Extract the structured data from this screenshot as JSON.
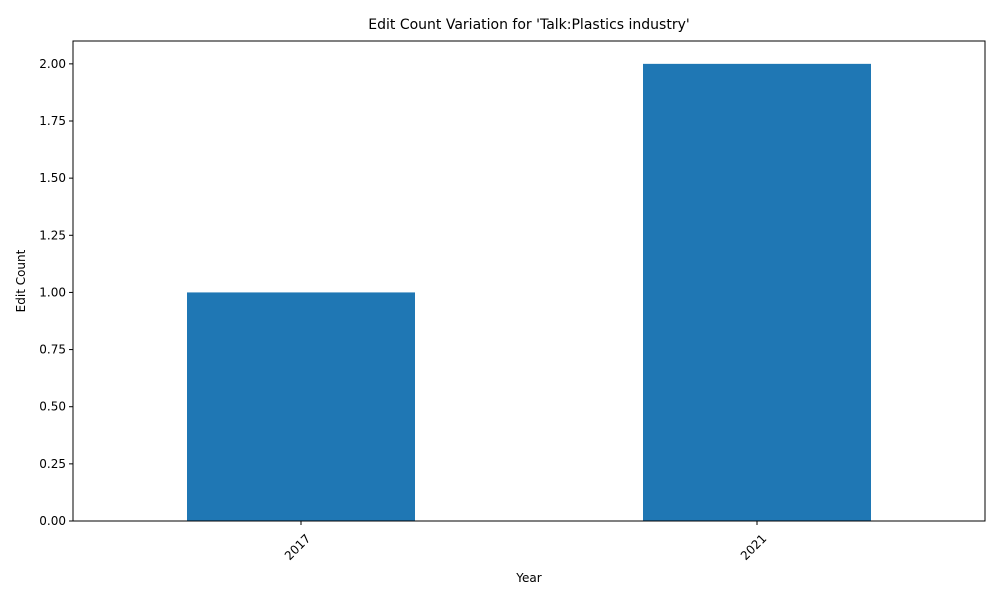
{
  "chart_data": {
    "type": "bar",
    "title": "Edit Count Variation for 'Talk:Plastics industry'",
    "xlabel": "Year",
    "ylabel": "Edit Count",
    "categories": [
      "2017",
      "2021"
    ],
    "values": [
      1,
      2
    ],
    "ylim": [
      0,
      2.1
    ],
    "yticks": [
      "0.00",
      "0.25",
      "0.50",
      "0.75",
      "1.00",
      "1.25",
      "1.50",
      "1.75",
      "2.00"
    ],
    "xtick_rotation_deg": 45,
    "grid": false,
    "legend": "none",
    "bar_color": "#1f77b4"
  }
}
